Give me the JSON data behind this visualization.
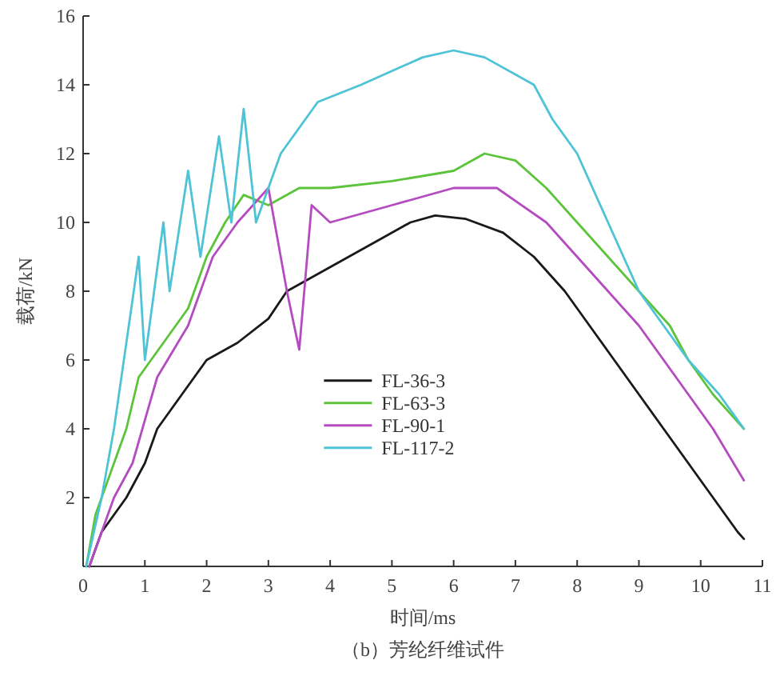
{
  "chart_data": {
    "type": "line",
    "xlabel": "时间/ms",
    "ylabel": "载荷/kN",
    "annotations": [
      "（b）芳纶纤维试件"
    ],
    "xlim": [
      0,
      11
    ],
    "xticks": [
      0,
      1,
      2,
      3,
      4,
      5,
      6,
      7,
      8,
      9,
      10,
      11
    ],
    "ylim": [
      0,
      16
    ],
    "yticks": [
      2,
      4,
      6,
      8,
      10,
      12,
      14,
      16
    ],
    "legend": "center",
    "series": [
      {
        "name": "FL-36-3",
        "color": "#1a1a1a",
        "x": [
          0.1,
          0.3,
          0.5,
          0.7,
          1.0,
          1.2,
          1.4,
          1.6,
          2.0,
          2.5,
          3.0,
          3.3,
          3.8,
          4.3,
          4.8,
          5.3,
          5.7,
          6.2,
          6.8,
          7.3,
          7.8,
          8.2,
          8.6,
          9.0,
          9.4,
          9.8,
          10.2,
          10.6,
          10.7
        ],
        "values": [
          0,
          1,
          1.5,
          2,
          3,
          4,
          4.5,
          5,
          6,
          6.5,
          7.2,
          8,
          8.5,
          9,
          9.5,
          10,
          10.2,
          10.1,
          9.7,
          9,
          8,
          7,
          6,
          5,
          4,
          3,
          2,
          1,
          0.8
        ]
      },
      {
        "name": "FL-63-3",
        "color": "#5cc43a",
        "x": [
          0.05,
          0.2,
          0.4,
          0.7,
          0.9,
          1.3,
          1.7,
          2.0,
          2.3,
          2.6,
          3.0,
          3.5,
          4.0,
          5.0,
          6.0,
          6.5,
          7.0,
          7.5,
          8.0,
          8.5,
          9.0,
          9.5,
          9.8,
          10.2,
          10.7
        ],
        "values": [
          0,
          1.5,
          2.5,
          4,
          5.5,
          6.5,
          7.5,
          9,
          10,
          10.8,
          10.5,
          11,
          11,
          11.2,
          11.5,
          12,
          11.8,
          11,
          10,
          9,
          8,
          7,
          6,
          5,
          4
        ]
      },
      {
        "name": "FL-90-1",
        "color": "#b44bc0",
        "x": [
          0.1,
          0.5,
          0.8,
          1.2,
          1.7,
          2.1,
          2.5,
          3.0,
          3.3,
          3.5,
          3.7,
          4.0,
          5.0,
          6.0,
          6.7,
          7.5,
          8.0,
          8.5,
          9.0,
          9.4,
          9.8,
          10.2,
          10.7
        ],
        "values": [
          0,
          2,
          3,
          5.5,
          7,
          9,
          10,
          11,
          8,
          6.3,
          10.5,
          10,
          10.5,
          11,
          11,
          10,
          9,
          8,
          7,
          6,
          5,
          4,
          2.5
        ]
      },
      {
        "name": "FL-117-2",
        "color": "#4fc3d6",
        "x": [
          0.05,
          0.3,
          0.5,
          0.9,
          1.0,
          1.3,
          1.4,
          1.7,
          1.9,
          2.2,
          2.4,
          2.6,
          2.8,
          3.2,
          3.8,
          4.5,
          5.5,
          6.0,
          6.5,
          7.3,
          7.6,
          8.0,
          8.5,
          9.0,
          9.4,
          9.8,
          10.3,
          10.7
        ],
        "values": [
          0,
          2,
          4,
          9,
          6,
          10,
          8,
          11.5,
          9,
          12.5,
          10,
          13.3,
          10,
          12,
          13.5,
          14,
          14.8,
          15,
          14.8,
          14,
          13,
          12,
          10,
          8,
          7,
          6,
          5,
          4
        ]
      }
    ]
  }
}
